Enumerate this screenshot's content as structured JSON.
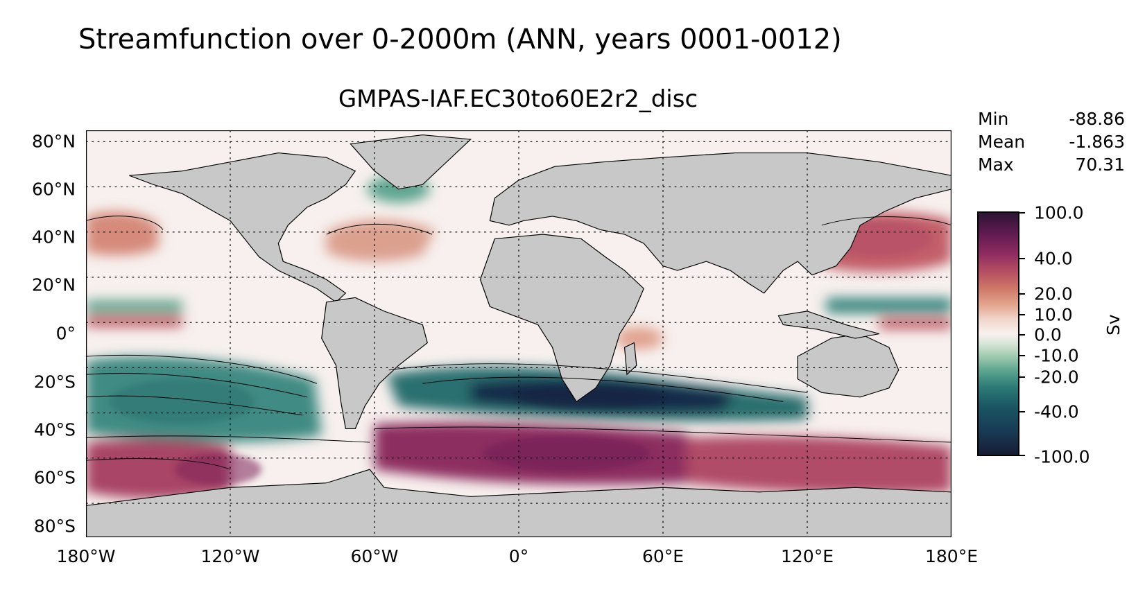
{
  "suptitle": "Streamfunction over 0-2000m (ANN, years 0001-0012)",
  "title": "GMPAS-IAF.EC30to60E2r2_disc",
  "stats": [
    {
      "label": "Min",
      "value": "-88.86"
    },
    {
      "label": "Mean",
      "value": "-1.863"
    },
    {
      "label": "Max",
      "value": "70.31"
    }
  ],
  "axes": {
    "x_ticks": [
      "180°W",
      "120°W",
      "60°W",
      "0°",
      "60°E",
      "120°E",
      "180°E"
    ],
    "y_ticks": [
      "80°N",
      "60°N",
      "40°N",
      "20°N",
      "0°",
      "20°S",
      "40°S",
      "60°S",
      "80°S"
    ]
  },
  "colorbar": {
    "label": "Sv",
    "ticks": [
      "100.0",
      "40.0",
      "20.0",
      "10.0",
      "0.0",
      "-10.0",
      "-20.0",
      "-40.0",
      "-100.0"
    ]
  },
  "colors": {
    "land": "#c8c8c8",
    "strong_positive": "#7d2359",
    "positive": "#c0606a",
    "weak_positive": "#eecdc0",
    "neutral": "#f6efec",
    "weak_negative": "#a8cfb6",
    "negative": "#2e7d77",
    "strong_negative": "#17294a"
  }
}
